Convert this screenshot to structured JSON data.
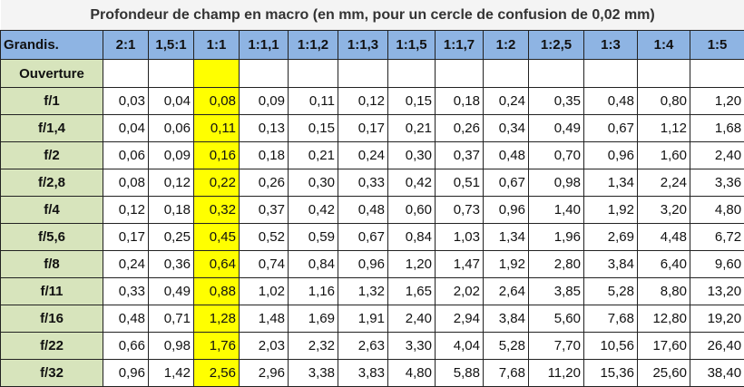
{
  "table": {
    "title": "Profondeur de champ en macro (en mm, pour un cercle de confusion de 0,02 mm)",
    "header": [
      "Grandis.",
      "2:1",
      "1,5:1",
      "1:1",
      "1:1,1",
      "1:1,2",
      "1:1,3",
      "1:1,5",
      "1:1,7",
      "1:2",
      "1:2,5",
      "1:3",
      "1:4",
      "1:5"
    ],
    "subheader": "Ouverture",
    "rows": [
      [
        "f/1",
        "0,03",
        "0,04",
        "0,08",
        "0,09",
        "0,11",
        "0,12",
        "0,15",
        "0,18",
        "0,24",
        "0,35",
        "0,48",
        "0,80",
        "1,20"
      ],
      [
        "f/1,4",
        "0,04",
        "0,06",
        "0,11",
        "0,13",
        "0,15",
        "0,17",
        "0,21",
        "0,26",
        "0,34",
        "0,49",
        "0,67",
        "1,12",
        "1,68"
      ],
      [
        "f/2",
        "0,06",
        "0,09",
        "0,16",
        "0,18",
        "0,21",
        "0,24",
        "0,30",
        "0,37",
        "0,48",
        "0,70",
        "0,96",
        "1,60",
        "2,40"
      ],
      [
        "f/2,8",
        "0,08",
        "0,12",
        "0,22",
        "0,26",
        "0,30",
        "0,33",
        "0,42",
        "0,51",
        "0,67",
        "0,98",
        "1,34",
        "2,24",
        "3,36"
      ],
      [
        "f/4",
        "0,12",
        "0,18",
        "0,32",
        "0,37",
        "0,42",
        "0,48",
        "0,60",
        "0,73",
        "0,96",
        "1,40",
        "1,92",
        "3,20",
        "4,80"
      ],
      [
        "f/5,6",
        "0,17",
        "0,25",
        "0,45",
        "0,52",
        "0,59",
        "0,67",
        "0,84",
        "1,03",
        "1,34",
        "1,96",
        "2,69",
        "4,48",
        "6,72"
      ],
      [
        "f/8",
        "0,24",
        "0,36",
        "0,64",
        "0,74",
        "0,84",
        "0,96",
        "1,20",
        "1,47",
        "1,92",
        "2,80",
        "3,84",
        "6,40",
        "9,60"
      ],
      [
        "f/11",
        "0,33",
        "0,49",
        "0,88",
        "1,02",
        "1,16",
        "1,32",
        "1,65",
        "2,02",
        "2,64",
        "3,85",
        "5,28",
        "8,80",
        "13,20"
      ],
      [
        "f/16",
        "0,48",
        "0,71",
        "1,28",
        "1,48",
        "1,69",
        "1,91",
        "2,40",
        "2,94",
        "3,84",
        "5,60",
        "7,68",
        "12,80",
        "19,20"
      ],
      [
        "f/22",
        "0,66",
        "0,98",
        "1,76",
        "2,03",
        "2,32",
        "2,63",
        "3,30",
        "4,04",
        "5,28",
        "7,70",
        "10,56",
        "17,60",
        "26,40"
      ],
      [
        "f/32",
        "0,96",
        "1,42",
        "2,56",
        "2,96",
        "3,38",
        "3,83",
        "4,80",
        "5,88",
        "7,68",
        "11,20",
        "15,36",
        "25,60",
        "38,40"
      ]
    ]
  }
}
